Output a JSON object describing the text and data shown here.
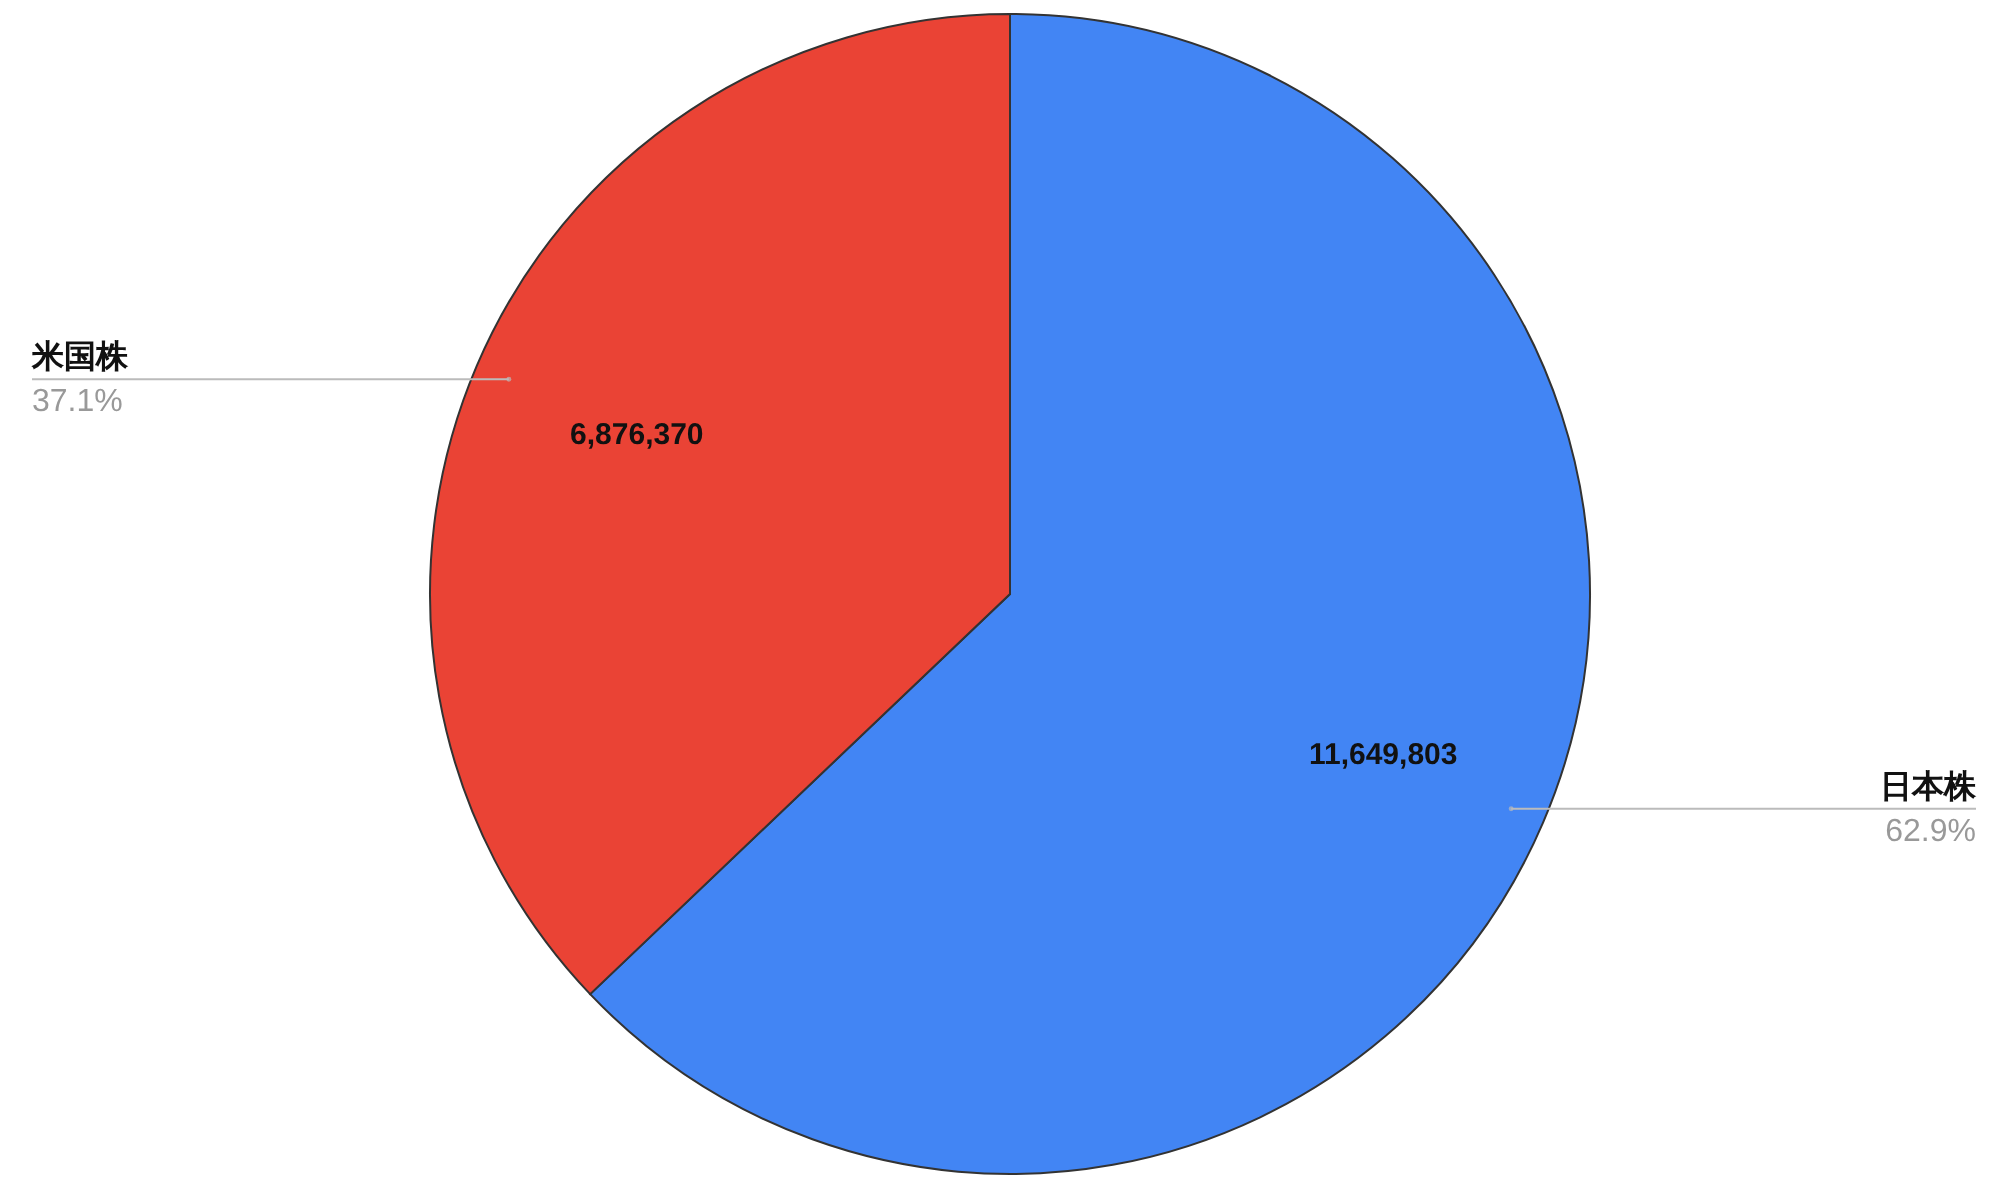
{
  "chart_data": {
    "type": "pie",
    "categories": [
      "日本株",
      "米国株"
    ],
    "values": [
      11649803,
      6876370
    ],
    "value_labels": [
      "11,649,803",
      "6,876,370"
    ],
    "colors": [
      "#4285f4",
      "#ea4335"
    ],
    "annotations": [
      "62.9%",
      "37.1%"
    ]
  }
}
